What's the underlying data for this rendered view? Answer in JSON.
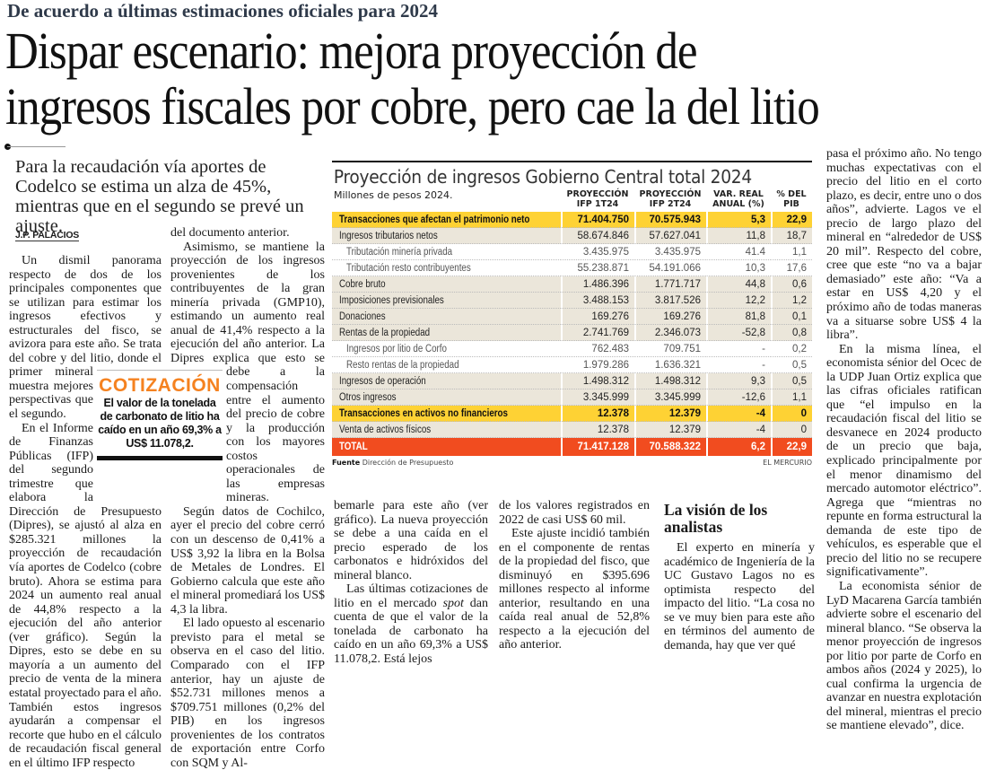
{
  "overline": "De acuerdo a últimas estimaciones oficiales para 2024",
  "headline": [
    "Dispar escenario: mejora proyección de",
    "ingresos fiscales por cobre, pero cae la del litio"
  ],
  "deck": "Para la recaudación vía aportes de Codelco se estima un alza de 45%, mientras que en el segundo se prevé un ajuste.",
  "byline": "J.P. PALACIOS",
  "cotizacion": {
    "title": "COTIZACIÓN",
    "body": "El valor de la tonelada de carbonato de litio ha caído en un año 69,3% a US$ 11.078,2."
  },
  "col1": {
    "p1": "Un dismil panorama respecto de dos de los principales componentes que se utilizan para estimar los ingresos efectivos y estructurales del fisco, se avizora para este año. Se trata del cobre y del litio, donde el primer mineral muestra mejores perspectivas que el segundo.",
    "p2": "En el Informe de Finanzas Públicas (IFP) del segundo trimestre que elabora la Dirección de Presupuesto (Dipres), se ajustó al alza en $285.321 millones la proyección de recaudación vía aportes de Codelco (cobre bruto). Ahora se estima para 2024 un aumento real anual de 44,8% respecto a la ejecución del año anterior (ver gráfico). Según la Dipres, esto se debe en su mayoría a un aumento del precio de venta de la minera estatal proyectado para el año. También estos ingresos ayudarán a compensar el recorte que hubo en el cálculo de recaudación fiscal general en el último IFP respecto"
  },
  "col2": {
    "p0": "del documento anterior.",
    "p1a": "Asimismo, se mantiene la proyección de los ingresos provenientes de los contribuyentes de la gran minería privada (GMP10), estimando un aumento real anual de 41,4% respecto a la ejecución del año anterior. La Dipres explica que esto se debe a la compensación entre el aumento del precio de cobre y la",
    "p1b": "producción con los mayores costos operacionales de las empresas mineras.",
    "p2": "Según datos de Cochilco, ayer el precio del cobre cerró con un descenso de 0,41% a US$ 3,92 la libra en la Bolsa de Metales de Londres. El Gobierno calcula que este año el mineral promediará los US$ 4,3 la libra.",
    "p3": "El lado opuesto al escenario previsto para el metal se observa en el caso del litio. Comparado con el IFP anterior, hay un ajuste de $52.731 millones menos a $709.751 millones (0,2% del PIB) en los ingresos provenientes de los contratos de exportación entre Corfo con SQM y Al-"
  },
  "col3": {
    "p0": "bemarle para este año (ver gráfico). La nueva proyección se debe a una caída en el precio esperado de los carbonatos e hidróxidos del mineral blanco.",
    "p1a": "Las últimas cotizaciones de litio en el mercado ",
    "p1em": "spot",
    "p1b": " dan cuenta de que el valor de la tonelada de carbonato ha caído en un año 69,3% a US$ 11.078,2. Está lejos"
  },
  "col4": {
    "p0": "de los valores registrados en 2022 de casi US$ 60 mil.",
    "p1": "Este ajuste incidió también en el componente de rentas de la propiedad del fisco, que disminuyó en $395.696 millones respecto al informe anterior, resultando en una caída real anual de 52,8% respecto a la ejecución del año anterior."
  },
  "col5": {
    "subhead": "La visión de los analistas",
    "p1": "El experto en minería y académico de Ingeniería de la UC Gustavo Lagos no es optimista respecto del impacto del litio. “La cosa no se ve muy bien para este año en términos del aumento de demanda, hay que ver qué"
  },
  "col6": {
    "p0": "pasa el próximo año. No tengo muchas expectativas con el precio del litio en el corto plazo, es decir, entre uno o dos años”, advierte. Lagos ve el precio de largo plazo del mineral en “alrededor de US$ 20 mil”. Respecto del cobre, cree que este “no va a bajar demasiado” este año: “Va a estar en US$ 4,20 y el próximo año de todas maneras va a situarse sobre US$ 4 la libra”.",
    "p1": "En la misma línea, el economista sénior del Ocec de la UDP Juan Ortiz explica que las cifras oficiales ratifican que “el impulso en la recaudación fiscal del litio se desvanece en 2024 producto de un precio que baja, explicado principalmente por el menor dinamismo del mercado automotor eléctrico”. Agrega que “mientras no repunte en forma estructural la demanda de este tipo de vehículos, es esperable que el precio del litio no se recupere significativamente”.",
    "p2": "La economista sénior de LyD Macarena García también advierte sobre el escenario del mineral blanco. “Se observa la menor proyección de ingresos por litio por parte de Corfo en ambos años (2024 y 2025), lo cual confirma la urgencia de avanzar en nuestra explotación del mineral, mientras el precio se mantiene elevado”, dice."
  },
  "graphic": {
    "title": "Proyección de ingresos Gobierno Central total 2024",
    "unit": "Millones de pesos 2024.",
    "headers": [
      "PROYECCIÓN IFP 1T24",
      "PROYECCIÓN IFP 2T24",
      "VAR. REAL ANUAL (%)",
      "% DEL PIB"
    ],
    "rows": [
      {
        "type": "hl",
        "label": "Transacciones que afectan el patrimonio neto",
        "v": [
          "71.404.750",
          "70.575.943",
          "5,3",
          "22,9"
        ]
      },
      {
        "type": "main",
        "label": "Ingresos tributarios netos",
        "v": [
          "58.674.846",
          "57.627.041",
          "11,8",
          "18,7"
        ]
      },
      {
        "type": "sub",
        "label": "Tributación minería privada",
        "v": [
          "3.435.975",
          "3.435.975",
          "41.4",
          "1,1"
        ]
      },
      {
        "type": "sub",
        "label": "Tributación resto contribuyentes",
        "v": [
          "55.238.871",
          "54.191.066",
          "10,3",
          "17,6"
        ]
      },
      {
        "type": "main",
        "label": "Cobre bruto",
        "v": [
          "1.486.396",
          "1.771.717",
          "44,8",
          "0,6"
        ]
      },
      {
        "type": "main",
        "label": "Imposiciones previsionales",
        "v": [
          "3.488.153",
          "3.817.526",
          "12,2",
          "1,2"
        ]
      },
      {
        "type": "main",
        "label": "Donaciones",
        "v": [
          "169.276",
          "169.276",
          "81,8",
          "0,1"
        ]
      },
      {
        "type": "main",
        "label": "Rentas de la propiedad",
        "v": [
          "2.741.769",
          "2.346.073",
          "-52,8",
          "0,8"
        ]
      },
      {
        "type": "sub",
        "label": "Ingresos por litio de Corfo",
        "v": [
          "762.483",
          "709.751",
          "-",
          "0,2"
        ]
      },
      {
        "type": "sub",
        "label": "Resto rentas de la propiedad",
        "v": [
          "1.979.286",
          "1.636.321",
          "-",
          "0,5"
        ]
      },
      {
        "type": "main",
        "label": "Ingresos de operación",
        "v": [
          "1.498.312",
          "1.498.312",
          "9,3",
          "0,5"
        ]
      },
      {
        "type": "main",
        "label": "Otros ingresos",
        "v": [
          "3.345.999",
          "3.345.999",
          "-12,6",
          "1,1"
        ]
      },
      {
        "type": "hl",
        "label": "Transacciones en activos no financieros",
        "v": [
          "12.378",
          "12.379",
          "-4",
          "0"
        ]
      },
      {
        "type": "main",
        "label": "Venta de activos físicos",
        "v": [
          "12.378",
          "12.379",
          "-4",
          "0"
        ]
      },
      {
        "type": "total",
        "label": "TOTAL",
        "v": [
          "71.417.128",
          "70.588.322",
          "6,2",
          "22,9"
        ]
      }
    ],
    "source_label": "Fuente",
    "source": "Dirección de Presupuesto",
    "credit": "EL MERCURIO"
  },
  "colors": {
    "highlight": "#fed234",
    "total": "#f14c1f",
    "row": "#ebe6da",
    "cotizacion": "#f58220"
  }
}
